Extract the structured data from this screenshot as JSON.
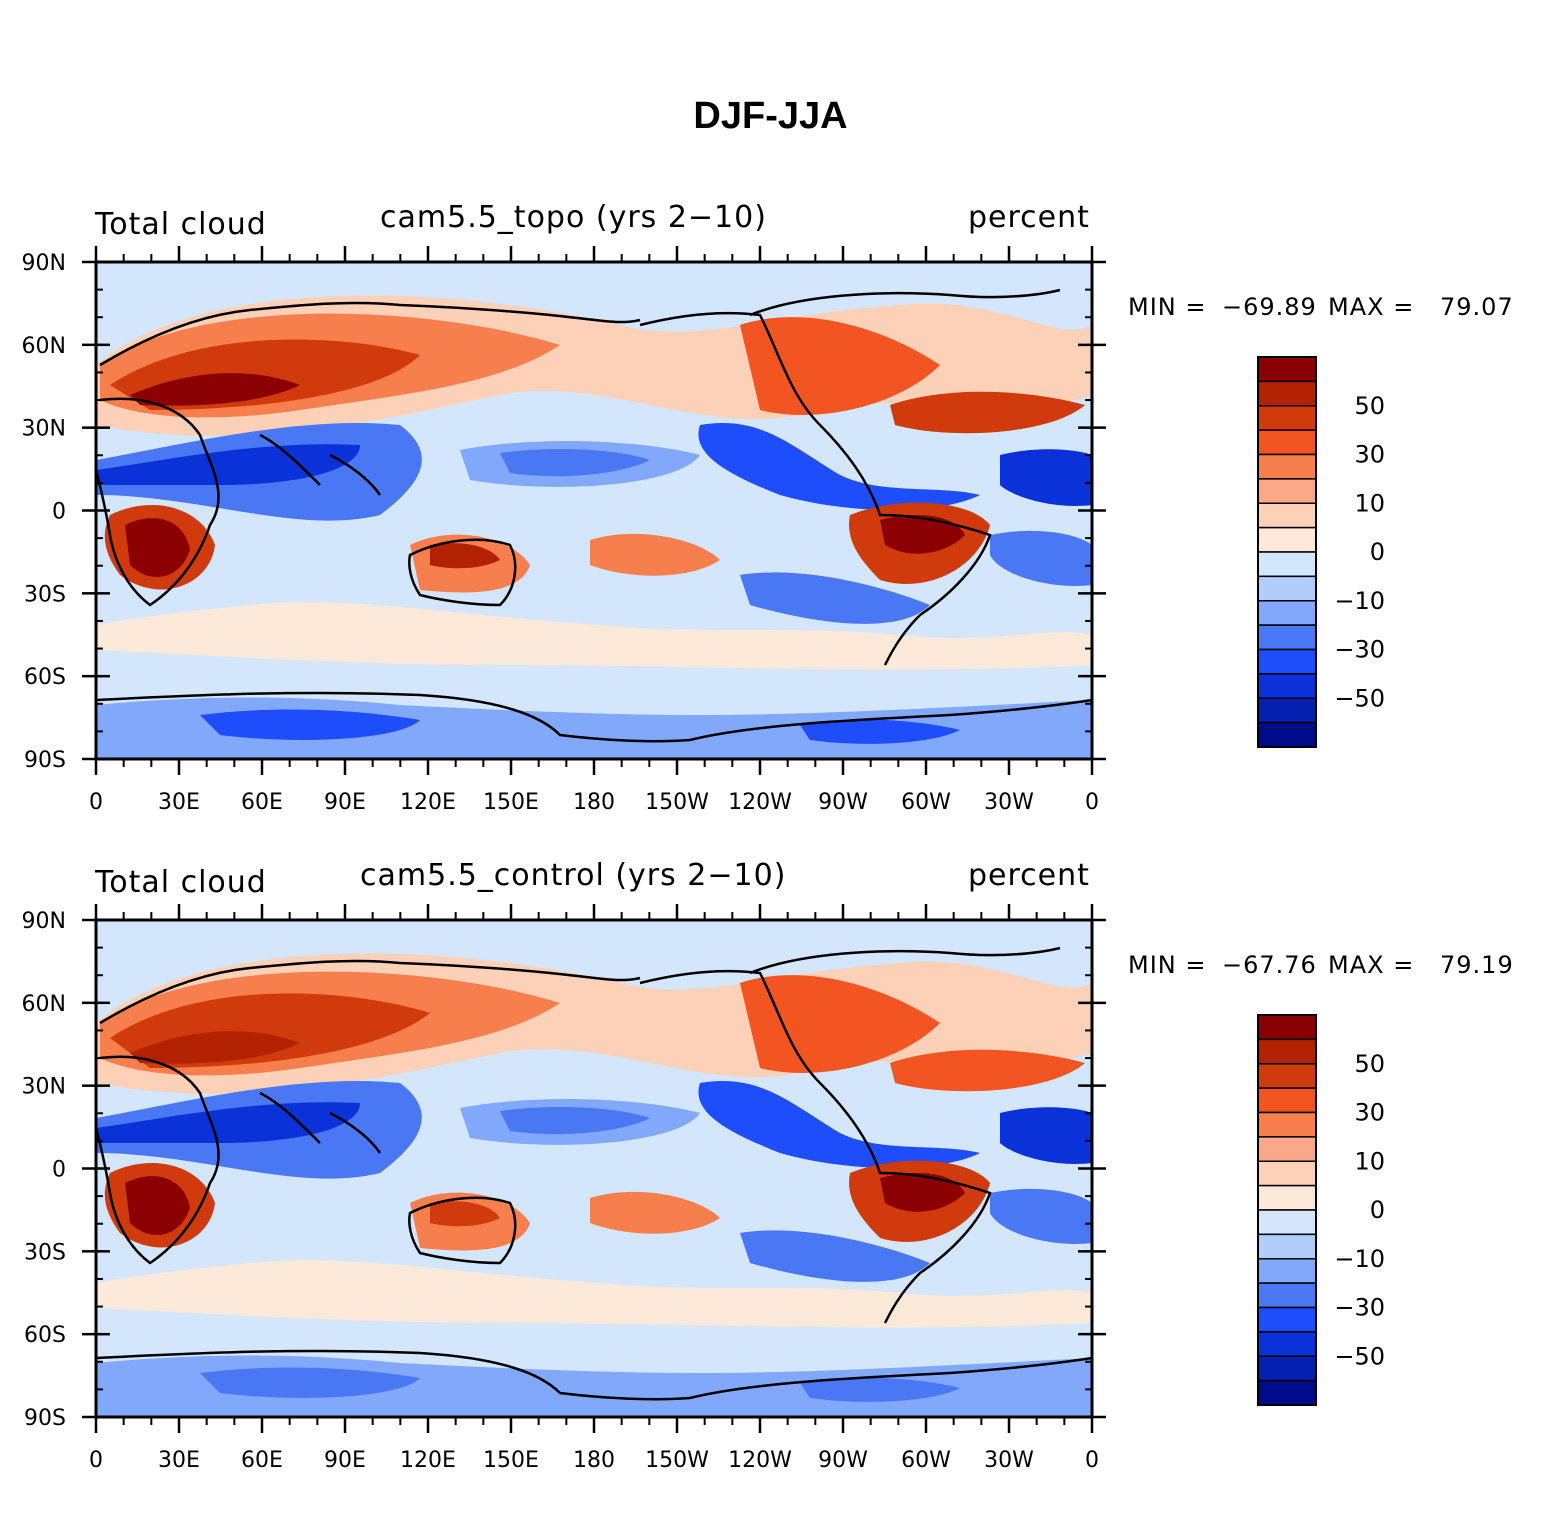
{
  "title": "DJF-JJA",
  "panels": [
    {
      "left_label": "Total cloud",
      "center_label": "cam5.5_topo (yrs 2−10)",
      "right_label": "percent",
      "min_label": "MIN =",
      "min_value": "−69.89",
      "max_label": "MAX =",
      "max_value": "79.07"
    },
    {
      "left_label": "Total cloud",
      "center_label": "cam5.5_control (yrs 2−10)",
      "right_label": "percent",
      "min_label": "MIN =",
      "min_value": "−67.76",
      "max_label": "MAX =",
      "max_value": "79.19"
    }
  ],
  "axes": {
    "lat_ticks": [
      "90N",
      "60N",
      "30N",
      "0",
      "30S",
      "60S",
      "90S"
    ],
    "lon_ticks": [
      "0",
      "30E",
      "60E",
      "90E",
      "120E",
      "150E",
      "180",
      "150W",
      "120W",
      "90W",
      "60W",
      "30W",
      "0"
    ]
  },
  "colorbar": {
    "colors": [
      "#8b0000",
      "#b22100",
      "#d13a0c",
      "#f25422",
      "#f77f4e",
      "#fba888",
      "#fdd0b8",
      "#fde9d9",
      "#d3e6fb",
      "#b0cdfc",
      "#81a8fb",
      "#4a78f5",
      "#1e4dfc",
      "#0a32d8",
      "#0420b0",
      "#000c8c"
    ],
    "labels": [
      "50",
      "30",
      "10",
      "0",
      "−10",
      "−30",
      "−50"
    ]
  }
}
